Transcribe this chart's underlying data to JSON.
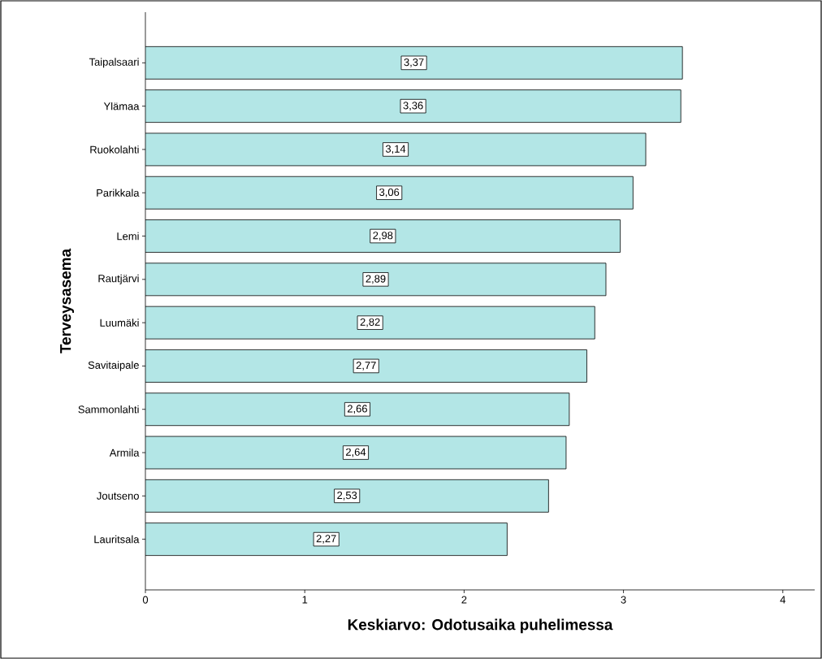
{
  "chart_data": {
    "type": "bar",
    "orientation": "horizontal",
    "categories": [
      "Taipalsaari",
      "Ylämaa",
      "Ruokolahti",
      "Parikkala",
      "Lemi",
      "Rautjärvi",
      "Luumäki",
      "Savitaipale",
      "Sammonlahti",
      "Armila",
      "Joutseno",
      "Lauritsala"
    ],
    "values": [
      3.37,
      3.36,
      3.14,
      3.06,
      2.98,
      2.89,
      2.82,
      2.77,
      2.66,
      2.64,
      2.53,
      2.27
    ],
    "value_labels": [
      "3,37",
      "3,36",
      "3,14",
      "3,06",
      "2,98",
      "2,89",
      "2,82",
      "2,77",
      "2,66",
      "2,64",
      "2,53",
      "2,27"
    ],
    "color": "#b3e6e6",
    "xlim": [
      0,
      4.2
    ],
    "xticks": [
      0,
      1,
      2,
      3,
      4
    ],
    "xlabel": "Keskiarvo: Odotusaika puhelimessa",
    "ylabel": "Terveysasema",
    "grid": false
  }
}
